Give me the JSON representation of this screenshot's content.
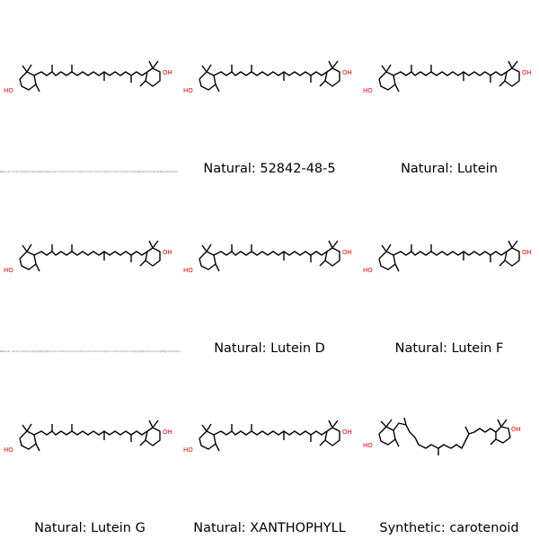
{
  "colors": {
    "bond": "#000000",
    "heteroatom": "#ff0000",
    "background": "#ffffff"
  },
  "atom_label": "OH",
  "atom_label_left": "HO",
  "cells": [
    {
      "caption": "",
      "tiny_caption": "Natural: CC1=C(C(C)(C)C[C@@H](O)C1)/C=C/C(C)=C/C=C/C(C)=C/C=C/C=C(C)/C=C/C=C(C)/C=C/[C@H]1C(C)=C[C@H](O)CC1(C)C"
    },
    {
      "caption": "Natural: 52842-48-5",
      "tiny_caption": ""
    },
    {
      "caption": "Natural: Lutein",
      "tiny_caption": ""
    },
    {
      "caption": "",
      "tiny_caption": "Natural: CC1=C(C(C)(C)C[C@@H](O)C1)/C=C/C(C)=C/C=C/C(C)=C/C=C/C=C(C)/C=C/C=C(C)/C=C/[C@@H]1C(C)=C[C@H](O)CC1(C)C"
    },
    {
      "caption": "Natural: Lutein D",
      "tiny_caption": ""
    },
    {
      "caption": "Natural: Lutein F",
      "tiny_caption": ""
    },
    {
      "caption": "Natural: Lutein G",
      "tiny_caption": ""
    },
    {
      "caption": "Natural: XANTHOPHYLL",
      "tiny_caption": ""
    },
    {
      "caption": "Synthetic: carotenoid",
      "tiny_caption": ""
    }
  ]
}
